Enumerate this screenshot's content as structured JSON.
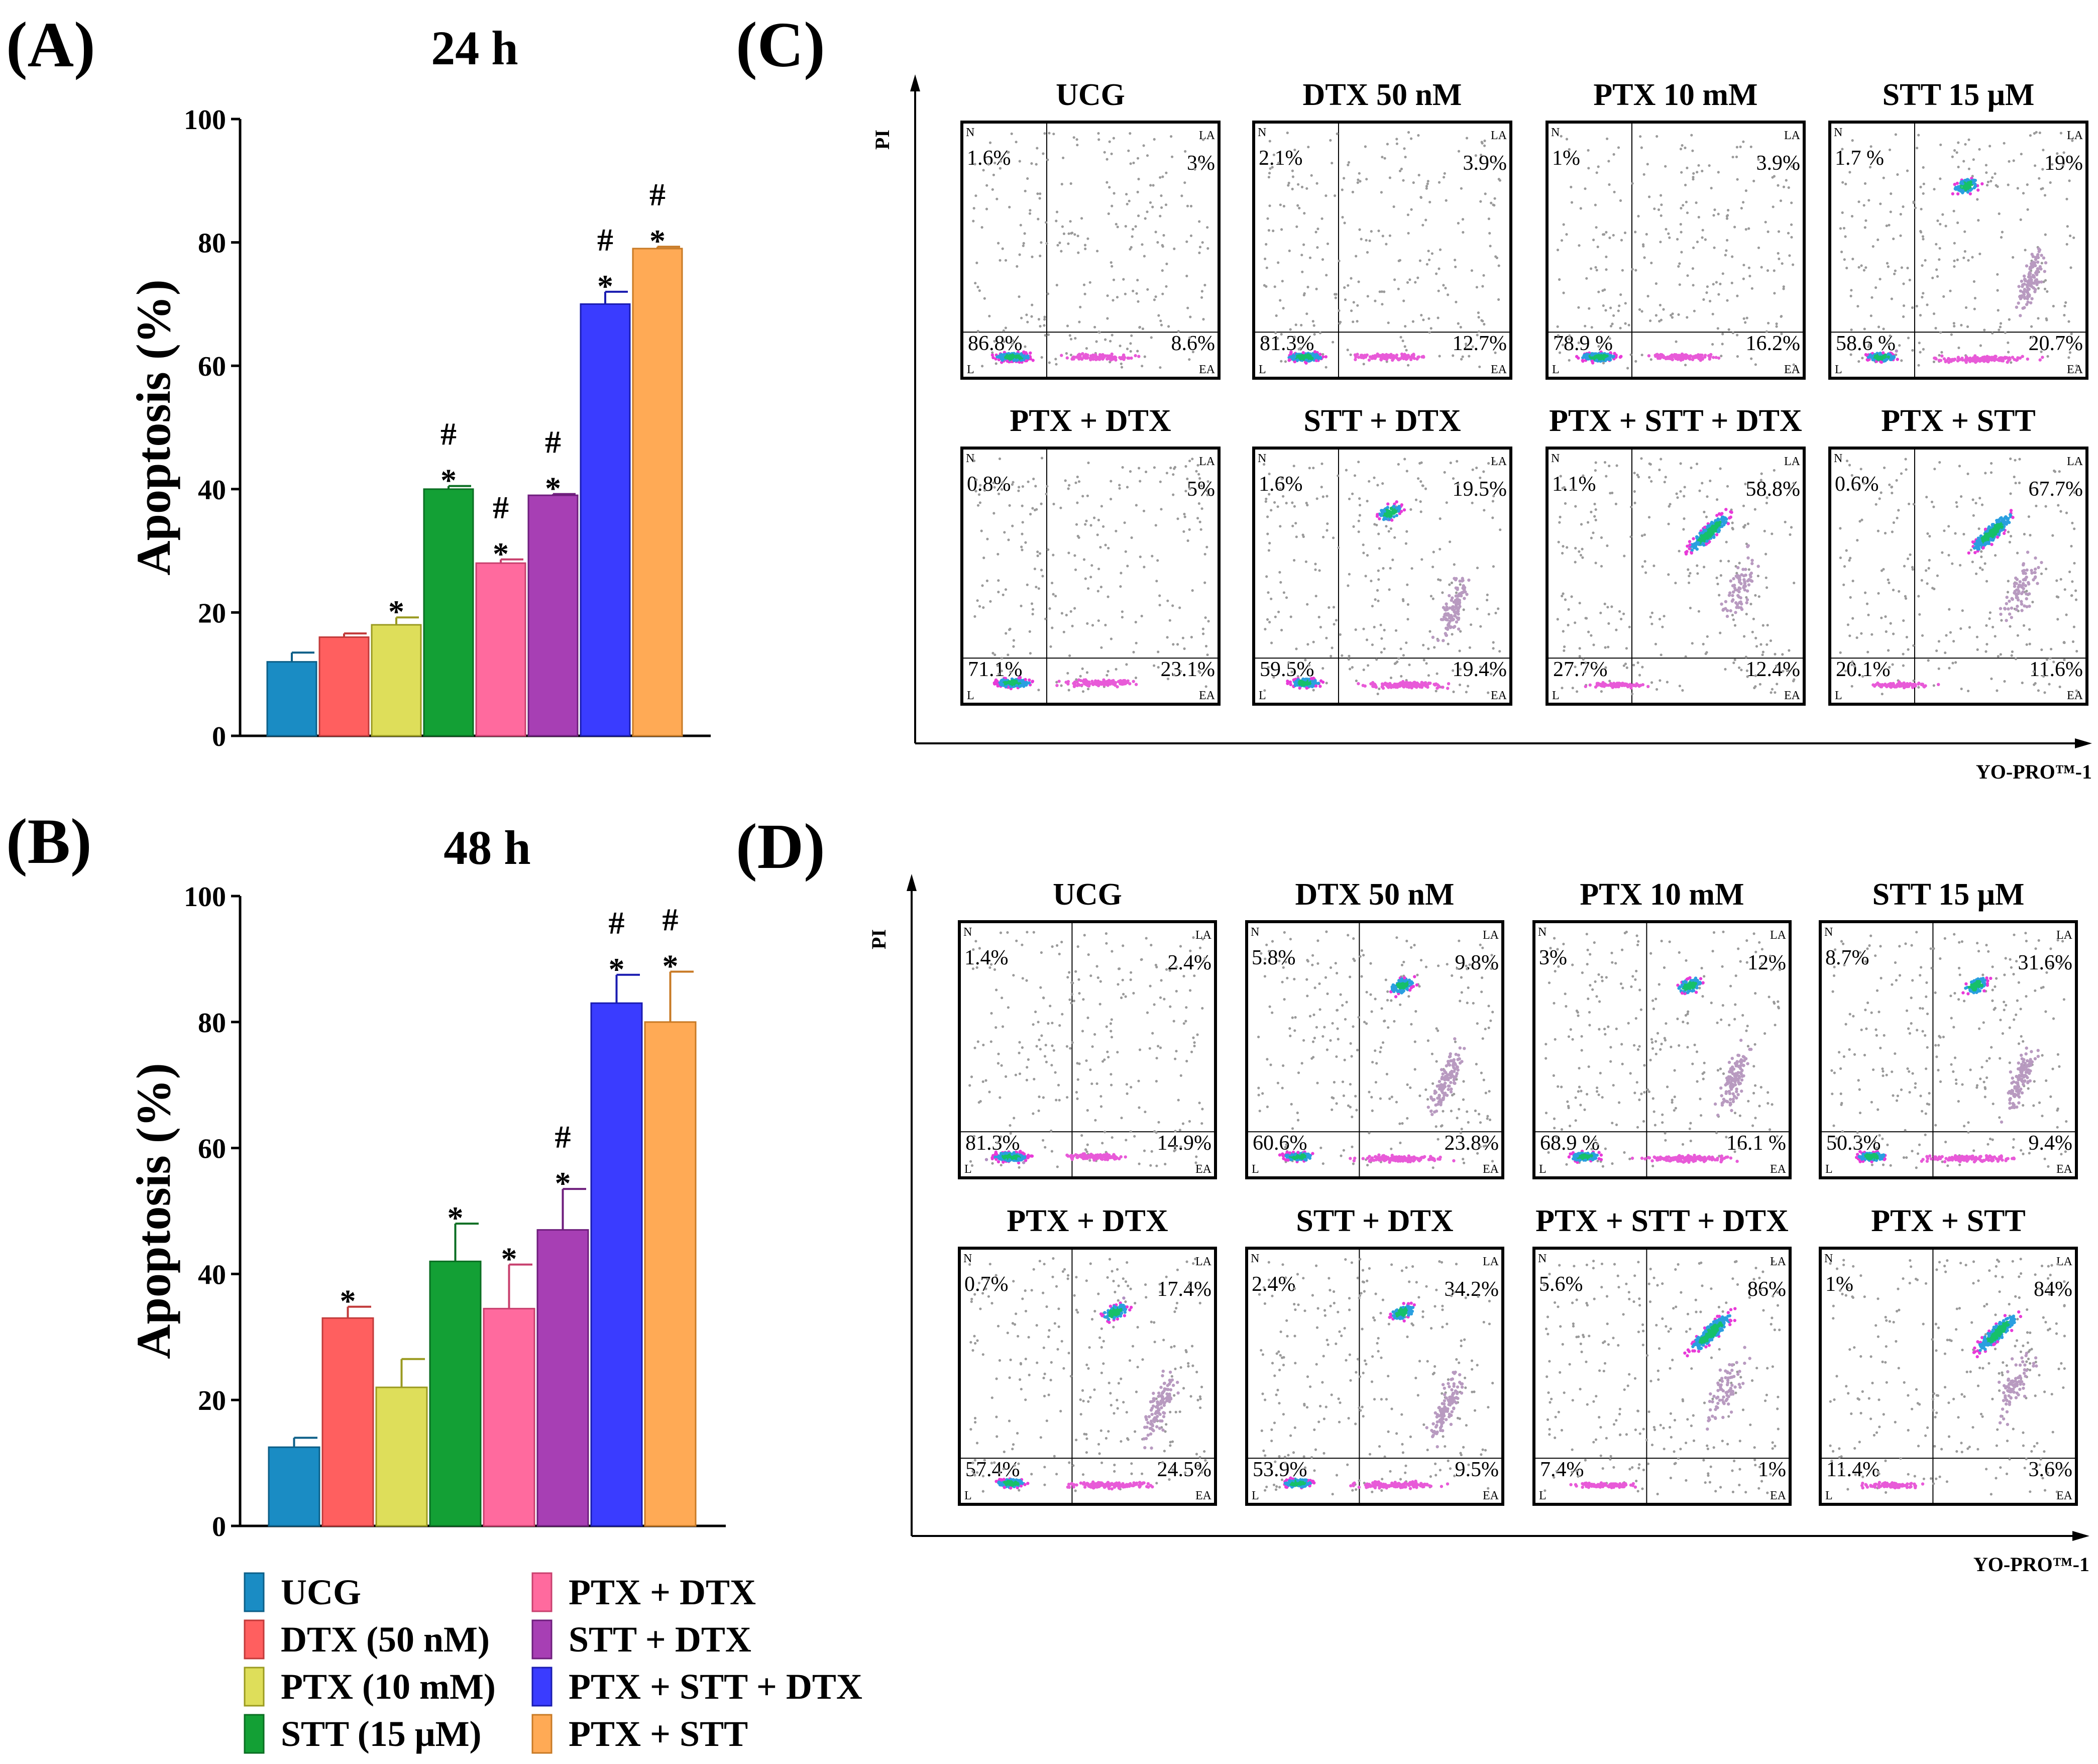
{
  "figure": {
    "groups": [
      "UCG",
      "DTX 50 nM",
      "PTX 10 mM",
      "STT 15 µM",
      "PTX + DTX",
      "STT + DTX",
      "PTX + STT + DTX",
      "PTX + STT"
    ],
    "colors": [
      "#1a8cc4",
      "#ff5f5f",
      "#dede5a",
      "#13a035",
      "#ff6a9e",
      "#a73fb4",
      "#3a3cff",
      "#ffaa55"
    ],
    "edge_colors": [
      "#0c5f88",
      "#c23a3a",
      "#9a9a20",
      "#0a6e22",
      "#c8406e",
      "#6e1e7c",
      "#1a1cb0",
      "#c87a25"
    ]
  },
  "chart_data": [
    {
      "id": "A",
      "type": "bar",
      "panel_label": "(A)",
      "title": "24 h",
      "xlabel": "",
      "ylabel": "Apoptosis  (%)",
      "ylim": [
        0,
        100
      ],
      "yticks": [
        "0",
        "20",
        "40",
        "60",
        "80",
        "100"
      ],
      "categories": [
        "UCG",
        "DTX (50 nM)",
        "PTX (10 mM)",
        "STT (15 µM)",
        "PTX + DTX",
        "STT + DTX",
        "PTX + STT + DTX",
        "PTX + STT"
      ],
      "values": [
        12,
        16,
        18,
        40,
        28,
        39,
        70,
        79
      ],
      "errors": [
        1.5,
        0.6,
        1.2,
        0.5,
        0.6,
        0.2,
        2,
        0.3
      ],
      "marks": [
        [],
        [],
        [
          "*"
        ],
        [
          "*",
          "#"
        ],
        [
          "*",
          "#"
        ],
        [
          "*",
          "#"
        ],
        [
          "*",
          "#"
        ],
        [
          "*",
          "#"
        ]
      ]
    },
    {
      "id": "B",
      "type": "bar",
      "panel_label": "(B)",
      "title": "48 h",
      "xlabel": "",
      "ylabel": "Apoptosis  (%)",
      "ylim": [
        0,
        100
      ],
      "yticks": [
        "0",
        "20",
        "40",
        "60",
        "80",
        "100"
      ],
      "categories": [
        "UCG",
        "DTX (50 nM)",
        "PTX (10 mM)",
        "STT (15 µM)",
        "PTX + DTX",
        "STT + DTX",
        "PTX + STT + DTX",
        "PTX + STT"
      ],
      "values": [
        12.5,
        33,
        22,
        42,
        34.5,
        47,
        83,
        80
      ],
      "errors": [
        1.5,
        1.8,
        4.5,
        6,
        7,
        6.5,
        4.5,
        8
      ],
      "marks": [
        [],
        [
          "*"
        ],
        [],
        [
          "*"
        ],
        [
          "*"
        ],
        [
          "*",
          "#"
        ],
        [
          "*",
          "#"
        ],
        [
          "*",
          "#"
        ]
      ]
    },
    {
      "id": "C",
      "type": "scatter",
      "panel_label": "(C)",
      "x_axis_label": "YO-PRO™-1",
      "y_axis_label": "PI",
      "quadrant_labels": [
        "N",
        "LA",
        "L",
        "EA"
      ],
      "plots": [
        {
          "title": "UCG",
          "N": "1.6%",
          "LA": "3%",
          "L": "86.8%",
          "EA": "8.6%"
        },
        {
          "title": "DTX 50 nM",
          "N": "2.1%",
          "LA": "3.9%",
          "L": "81.3%",
          "EA": "12.7%"
        },
        {
          "title": "PTX 10 mM",
          "N": "1%",
          "LA": "3.9%",
          "L": "78.9 %",
          "EA": "16.2%"
        },
        {
          "title": "STT 15 μM",
          "N": "1.7 %",
          "LA": "19%",
          "L": "58.6 %",
          "EA": "20.7%"
        },
        {
          "title": "PTX + DTX",
          "N": "0.8%",
          "LA": "5%",
          "L": "71.1%",
          "EA": "23.1%"
        },
        {
          "title": "STT + DTX",
          "N": "1.6%",
          "LA": "19.5%",
          "L": "59.5%",
          "EA": "19.4%"
        },
        {
          "title": "PTX + STT + DTX",
          "N": "1.1%",
          "LA": "58.8%",
          "L": "27.7%",
          "EA": "12.4%"
        },
        {
          "title": "PTX + STT",
          "N": "0.6%",
          "LA": "67.7%",
          "L": "20.1%",
          "EA": "11.6%"
        }
      ]
    },
    {
      "id": "D",
      "type": "scatter",
      "panel_label": "(D)",
      "x_axis_label": "YO-PRO™-1",
      "y_axis_label": "PI",
      "quadrant_labels": [
        "N",
        "LA",
        "L",
        "EA"
      ],
      "plots": [
        {
          "title": "UCG",
          "N": "1.4%",
          "LA": "2.4%",
          "L": "81.3%",
          "EA": "14.9%"
        },
        {
          "title": "DTX 50 nM",
          "N": "5.8%",
          "LA": "9.8%",
          "L": "60.6%",
          "EA": "23.8%"
        },
        {
          "title": "PTX 10 mM",
          "N": "3%",
          "LA": "12%",
          "L": "68.9 %",
          "EA": "16.1 %"
        },
        {
          "title": "STT 15 μM",
          "N": "8.7%",
          "LA": "31.6%",
          "L": "50.3%",
          "EA": "9.4%"
        },
        {
          "title": "PTX + DTX",
          "N": "0.7%",
          "LA": "17.4%",
          "L": "57.4%",
          "EA": "24.5%"
        },
        {
          "title": "STT + DTX",
          "N": "2.4%",
          "LA": "34.2%",
          "L": "53.9%",
          "EA": "9.5%"
        },
        {
          "title": "PTX + STT + DTX",
          "N": "5.6%",
          "LA": "86%",
          "L": "7.4%",
          "EA": "1%"
        },
        {
          "title": "PTX + STT",
          "N": "1%",
          "LA": "84%",
          "L": "11.4%",
          "EA": "3.6%"
        }
      ]
    }
  ],
  "legend": {
    "entries": [
      "UCG",
      "DTX (50 nM)",
      "PTX (10 mM)",
      "STT (15 μM)",
      "PTX + DTX",
      "STT + DTX",
      "PTX + STT + DTX",
      "PTX + STT"
    ]
  }
}
